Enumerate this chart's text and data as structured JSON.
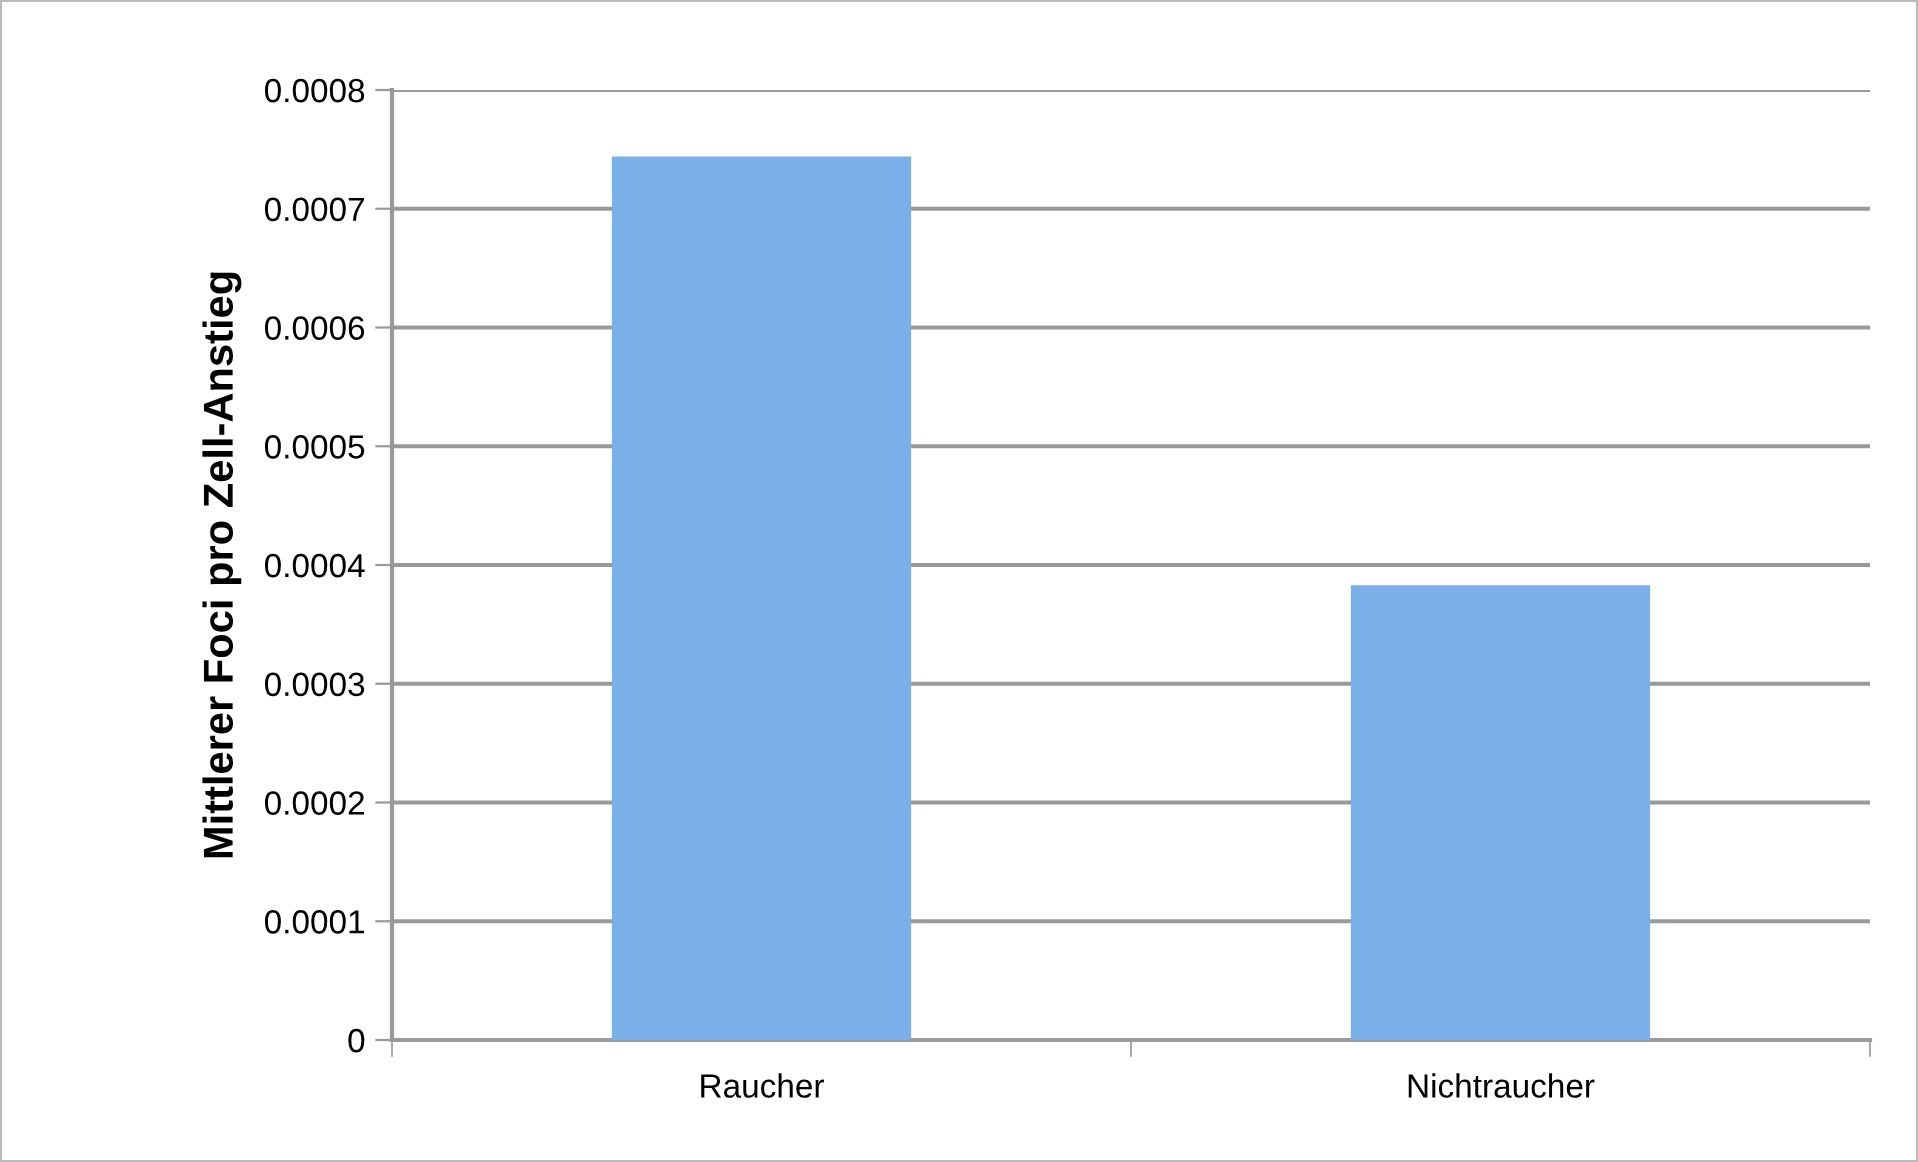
{
  "chart_data": {
    "type": "bar",
    "ylabel": "Mittlerer Foci pro Zell-Anstieg",
    "categories": [
      "Raucher",
      "Nichtraucher"
    ],
    "values": [
      0.000744,
      0.000383
    ],
    "color": "#7ab0ea",
    "ylim": [
      0,
      0.0008
    ],
    "yticks": [
      {
        "value": 0,
        "label": "0"
      },
      0.0001,
      0.0002,
      0.0003,
      0.0004,
      0.0005,
      0.0006,
      0.0007,
      0.0008
    ],
    "grid": "y",
    "legend": false
  }
}
